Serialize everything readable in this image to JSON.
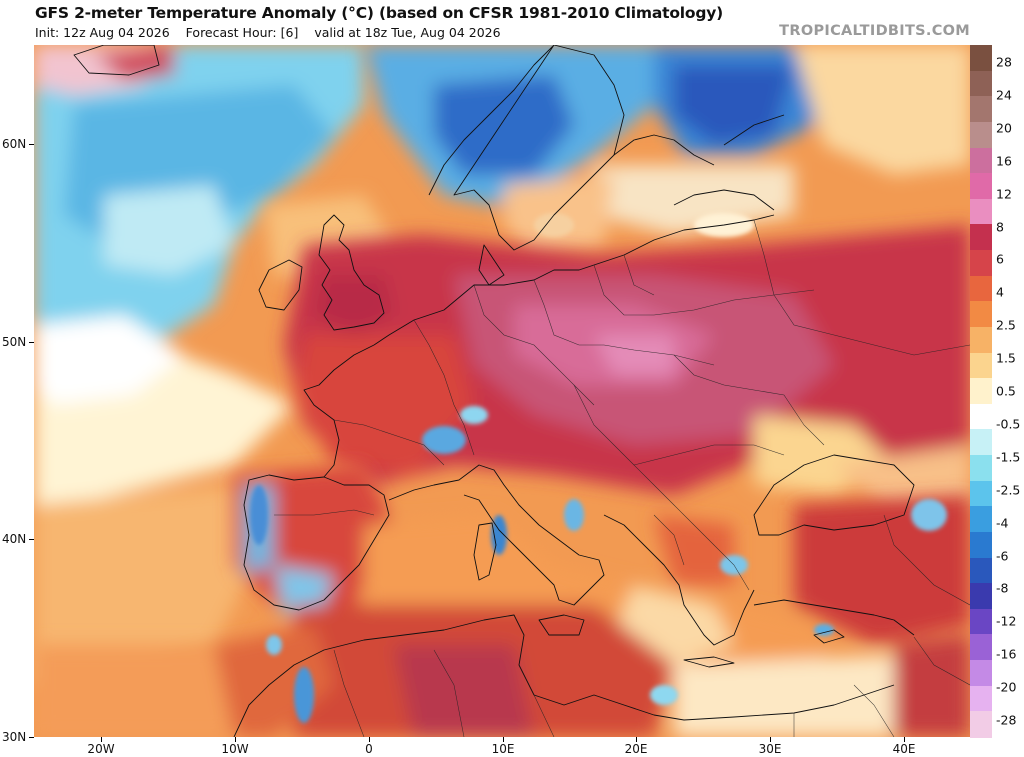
{
  "header": {
    "title": "GFS 2-meter Temperature Anomaly (°C) (based on CFSR 1981-2010 Climatology)",
    "init": "Init: 12z Aug 04 2026",
    "forecast_hour": "Forecast Hour: [6]",
    "valid": "valid at 18z Tue, Aug 04 2026",
    "brand": "TROPICALTIDBITS.COM"
  },
  "map": {
    "lat_labels": [
      "60N",
      "50N",
      "40N",
      "30N"
    ],
    "lon_labels": [
      "20W",
      "10W",
      "0",
      "10E",
      "20E",
      "30E",
      "40E"
    ]
  },
  "colorbar": {
    "labels": [
      "28",
      "24",
      "20",
      "16",
      "12",
      "8",
      "6",
      "4",
      "2.5",
      "1.5",
      "0.5",
      "-0.5",
      "-1.5",
      "-2.5",
      "-4",
      "-6",
      "-8",
      "-12",
      "-16",
      "-20",
      "-28"
    ],
    "colors": [
      "#7a5040",
      "#8e6156",
      "#a3766e",
      "#b98e8c",
      "#cc6f9e",
      "#e06aa8",
      "#ea8ec0",
      "#c4304e",
      "#d6444a",
      "#e8663e",
      "#f28a44",
      "#f7b266",
      "#fbd48e",
      "#fff2cc",
      "#ffffff",
      "#c7f1f6",
      "#8be0ee",
      "#5cc4ec",
      "#3a9ee0",
      "#2a7ad0",
      "#2a58bc",
      "#3a3aae",
      "#6a46c4",
      "#9a62d6",
      "#c48ae6",
      "#e6b2f0",
      "#f2cce6"
    ]
  }
}
